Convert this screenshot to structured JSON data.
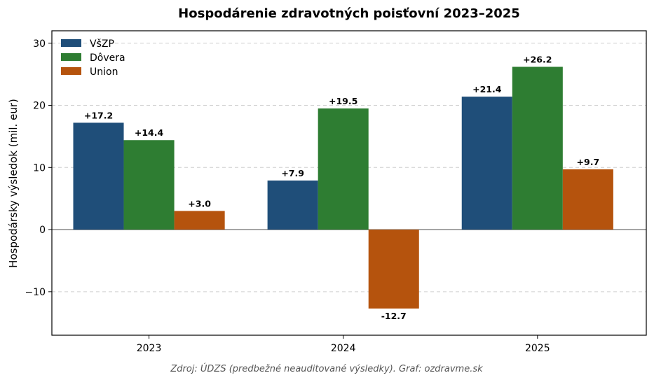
{
  "chart_data": {
    "type": "bar",
    "title": "Hospodárenie zdravotných poisťovní 2023–2025",
    "xlabel": "",
    "ylabel": "Hospodársky výsledok (mil. eur)",
    "categories": [
      "2023",
      "2024",
      "2025"
    ],
    "series": [
      {
        "name": "VšZP",
        "color": "#1f4e79",
        "values": [
          17.2,
          7.9,
          21.4
        ],
        "labels": [
          "+17.2",
          "+7.9",
          "+21.4"
        ]
      },
      {
        "name": "Dôvera",
        "color": "#2e7d32",
        "values": [
          14.4,
          19.5,
          26.2
        ],
        "labels": [
          "+14.4",
          "+19.5",
          "+26.2"
        ]
      },
      {
        "name": "Union",
        "color": "#b5530d",
        "values": [
          3.0,
          -12.7,
          9.7
        ],
        "labels": [
          "+3.0",
          "-12.7",
          "+9.7"
        ]
      }
    ],
    "ylim": [
      -17,
      32
    ],
    "yticks": [
      -10,
      0,
      10,
      20,
      30
    ],
    "ytick_labels": [
      "−10",
      "0",
      "10",
      "20",
      "30"
    ],
    "grid": true,
    "legend_position": "top-left",
    "source": "Zdroj: ÚDZS (predbežné neauditované výsledky). Graf: ozdravme.sk"
  }
}
